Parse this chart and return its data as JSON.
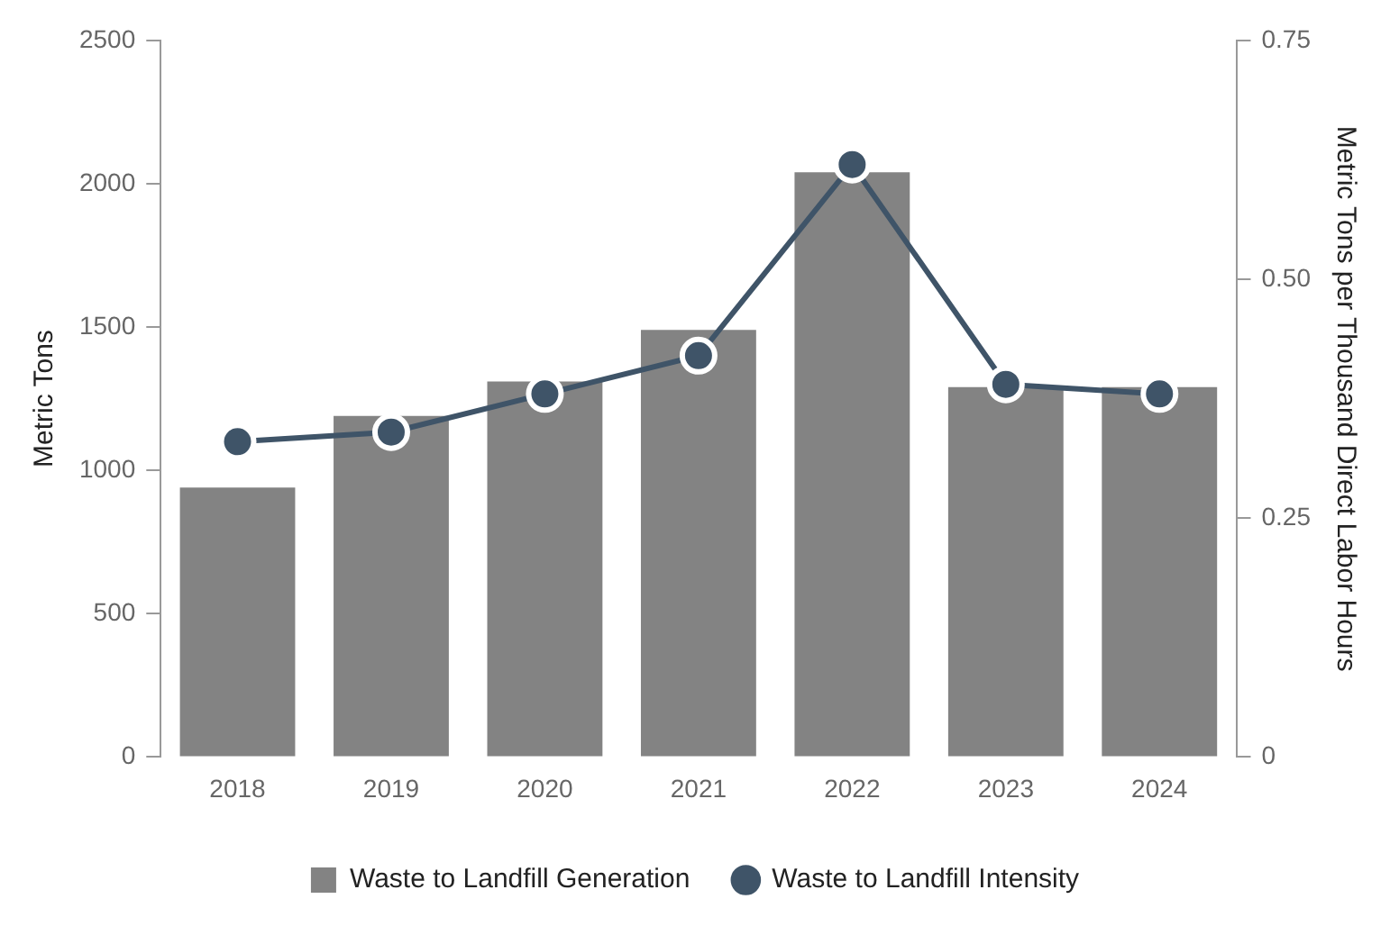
{
  "chart_data": {
    "type": "bar",
    "categories": [
      "2018",
      "2019",
      "2020",
      "2021",
      "2022",
      "2023",
      "2024"
    ],
    "series": [
      {
        "name": "Waste to Landfill Generation",
        "color": "#838383",
        "values": [
          940,
          1190,
          1310,
          1490,
          2040,
          1290,
          1290
        ]
      },
      {
        "name": "Waste to Landfill Intensity",
        "type": "line",
        "axis": "y2",
        "color": "#3f5468",
        "values": [
          0.33,
          0.34,
          0.38,
          0.42,
          0.62,
          0.39,
          0.38
        ]
      }
    ],
    "ylabel": "Metric Tons",
    "y2label": "Metric Tons per Thousand Direct Labor Hours",
    "ylim": [
      0,
      2500
    ],
    "yticks": [
      0,
      500,
      1000,
      1500,
      2000,
      2500
    ],
    "y2lim": [
      0,
      0.75
    ],
    "y2ticks": [
      {
        "value": 0,
        "label": "0"
      },
      {
        "value": 0.25,
        "label": "0.25"
      },
      {
        "value": 0.5,
        "label": "0.50"
      },
      {
        "value": 0.75,
        "label": "0.75"
      }
    ],
    "grid": false,
    "legend": "bottom",
    "marker": "circle"
  }
}
